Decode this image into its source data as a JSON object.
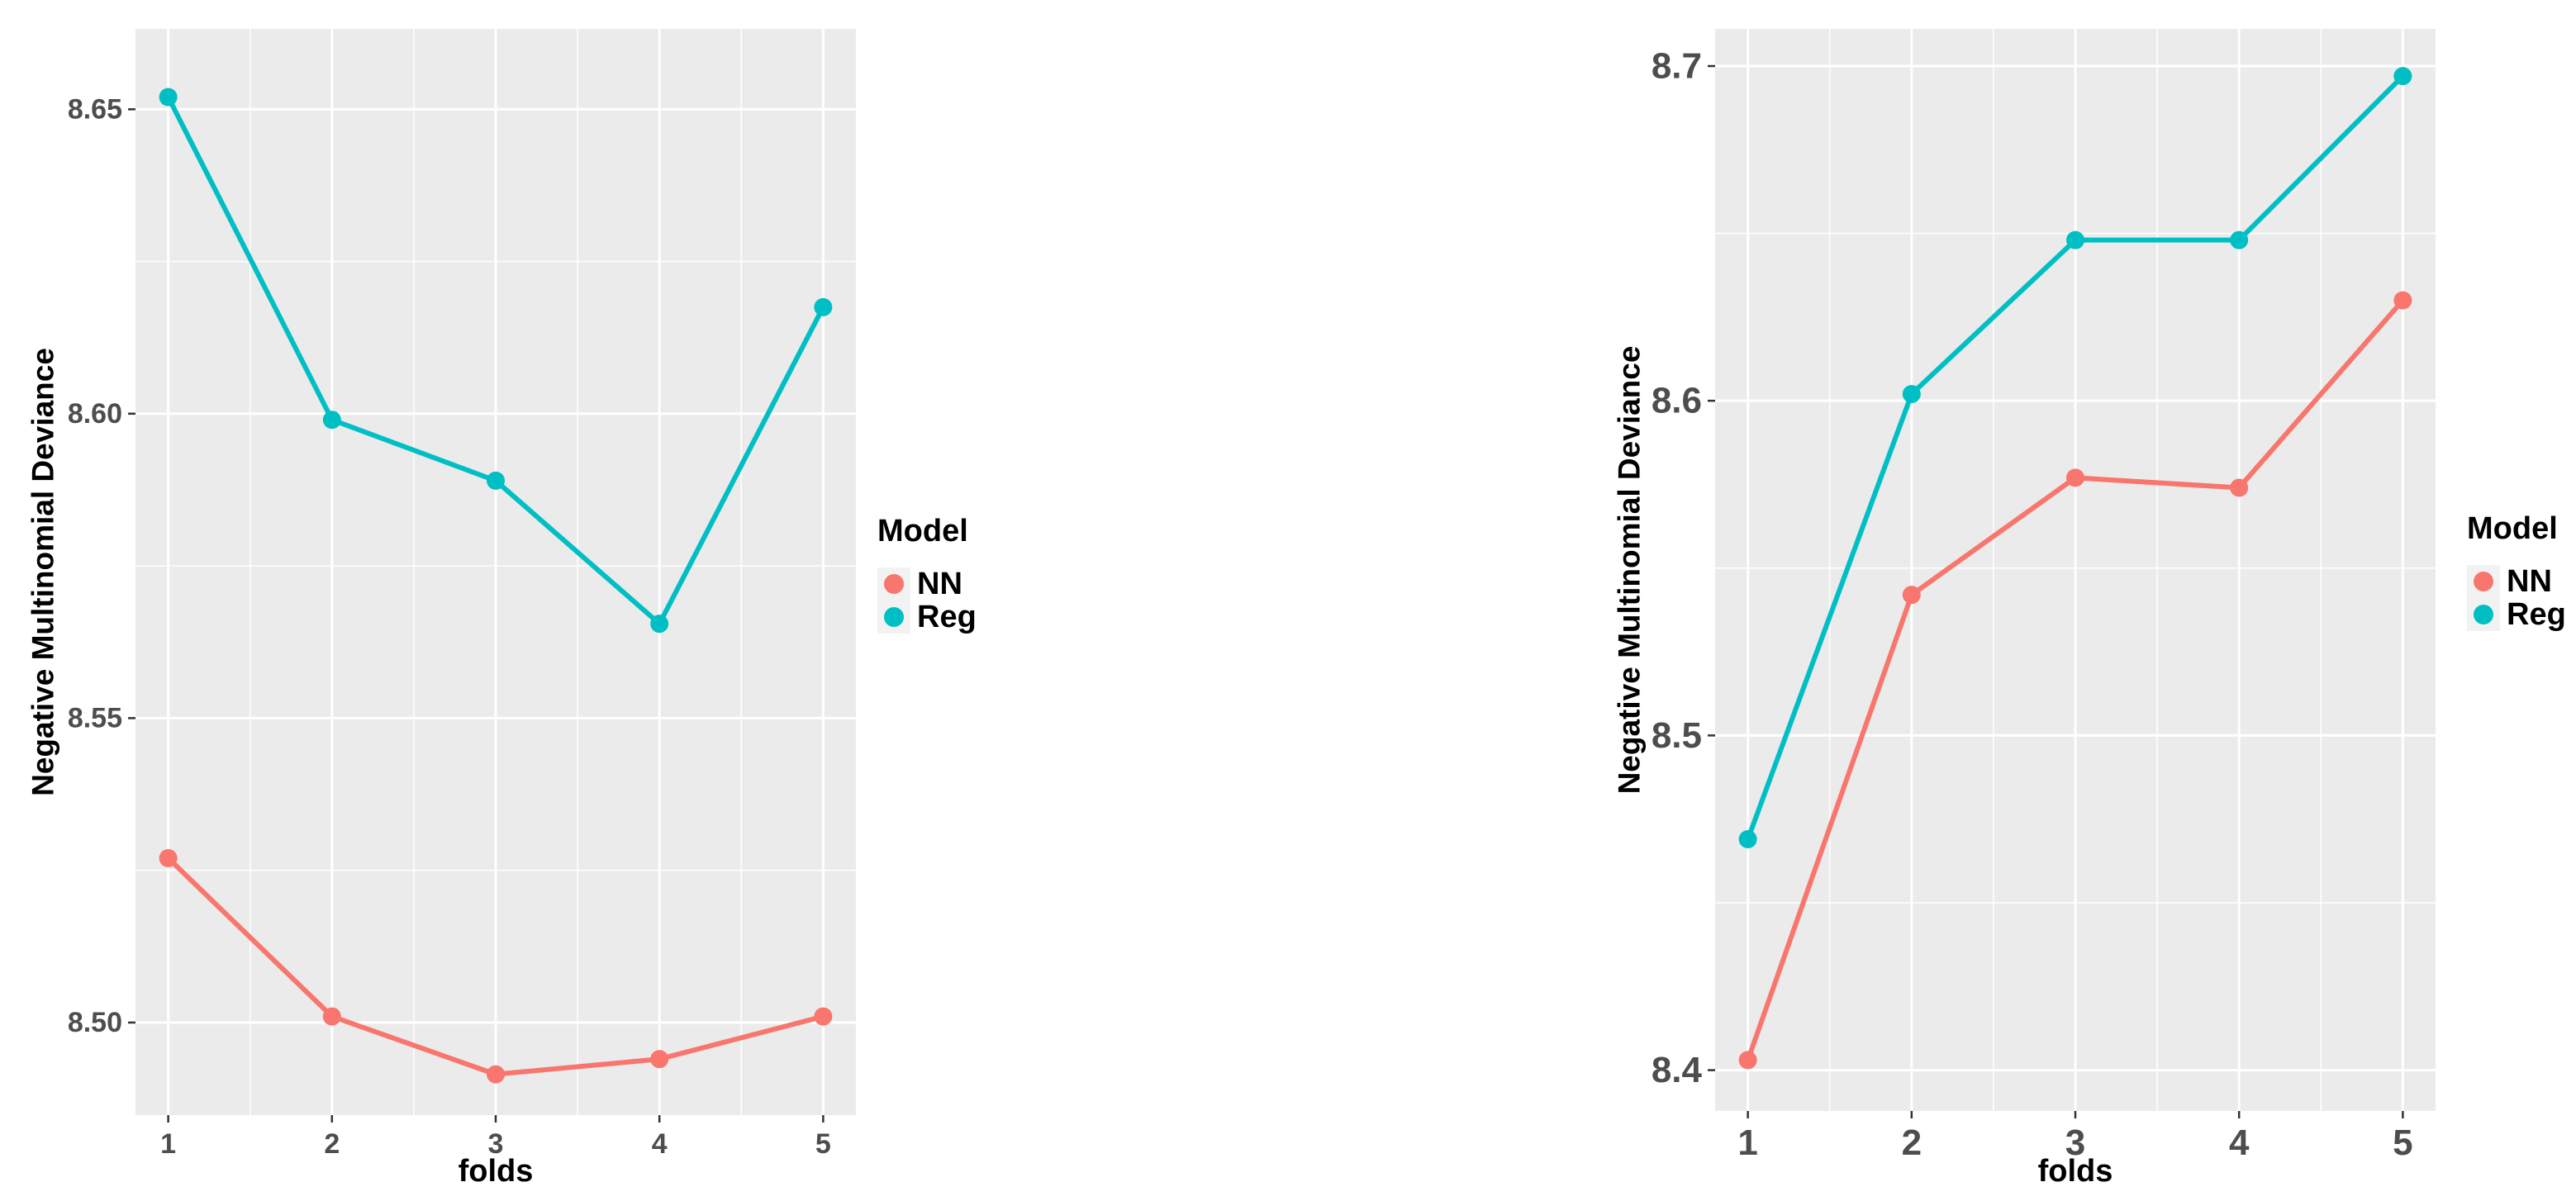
{
  "chart_data": [
    {
      "type": "line",
      "xlabel": "folds",
      "ylabel": "Negative Multinomial Deviance",
      "x": [
        1,
        2,
        3,
        4,
        5
      ],
      "xlim": [
        0.8,
        5.2
      ],
      "ylim": [
        8.4848,
        8.6632
      ],
      "yticks": [
        8.5,
        8.55,
        8.6,
        8.65
      ],
      "ytick_labels": [
        "8.50",
        "8.55",
        "8.60",
        "8.65"
      ],
      "grid": true,
      "series": [
        {
          "name": "NN",
          "color": "#F8766D",
          "values": [
            8.527,
            8.501,
            8.4915,
            8.494,
            8.501
          ]
        },
        {
          "name": "Reg",
          "color": "#00BFC4",
          "values": [
            8.652,
            8.599,
            8.589,
            8.5655,
            8.6175
          ]
        }
      ],
      "legend": {
        "title": "Model",
        "position": "right",
        "entries": [
          "NN",
          "Reg"
        ]
      }
    },
    {
      "type": "line",
      "xlabel": "folds",
      "ylabel": "Negative Multinomial Deviance",
      "x": [
        1,
        2,
        3,
        4,
        5
      ],
      "xlim": [
        0.8,
        5.2
      ],
      "ylim": [
        8.3878,
        8.7111
      ],
      "yticks": [
        8.4,
        8.5,
        8.6,
        8.7
      ],
      "ytick_labels": [
        "8.4",
        "8.5",
        "8.6",
        "8.7"
      ],
      "grid": true,
      "series": [
        {
          "name": "NN",
          "color": "#F8766D",
          "values": [
            8.403,
            8.542,
            8.577,
            8.574,
            8.63
          ]
        },
        {
          "name": "Reg",
          "color": "#00BFC4",
          "values": [
            8.469,
            8.602,
            8.648,
            8.648,
            8.697
          ]
        }
      ],
      "legend": {
        "title": "Model",
        "position": "right",
        "entries": [
          "NN",
          "Reg"
        ]
      }
    }
  ]
}
